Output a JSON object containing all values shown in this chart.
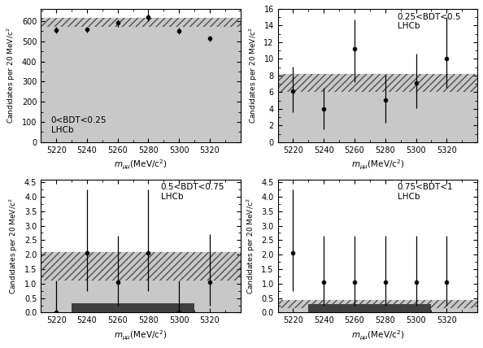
{
  "panels": [
    {
      "label": "0<BDT<0.25\nLHCb",
      "label_pos": "lower left",
      "ylim": [
        0,
        660
      ],
      "yticks": [
        0,
        100,
        200,
        300,
        400,
        500,
        600
      ],
      "data_x": [
        5220,
        5240,
        5260,
        5280,
        5300,
        5320
      ],
      "data_y": [
        555,
        558,
        590,
        618,
        552,
        513
      ],
      "data_yerr_lo": [
        15,
        15,
        18,
        20,
        16,
        14
      ],
      "data_yerr_hi": [
        15,
        15,
        18,
        20,
        16,
        14
      ],
      "band_low": 570,
      "band_high": 615,
      "has_signal_bar": false
    },
    {
      "label": "0.25<BDT<0.5\nLHCb",
      "label_pos": "upper right",
      "ylim": [
        0,
        16
      ],
      "yticks": [
        0,
        2,
        4,
        6,
        8,
        10,
        12,
        14,
        16
      ],
      "data_x": [
        5220,
        5240,
        5260,
        5280,
        5300,
        5320
      ],
      "data_y": [
        6.1,
        4.0,
        11.2,
        5.1,
        7.1,
        10.0
      ],
      "data_yerr_lo": [
        2.5,
        2.5,
        4.0,
        2.8,
        3.0,
        3.5
      ],
      "data_yerr_hi": [
        3.0,
        2.5,
        3.5,
        3.0,
        3.5,
        5.0
      ],
      "band_low": 6.0,
      "band_high": 8.2,
      "has_signal_bar": false
    },
    {
      "label": "0.5<BDT<0.75\nLHCb",
      "label_pos": "upper right",
      "ylim": [
        0,
        4.6
      ],
      "yticks": [
        0,
        0.5,
        1.0,
        1.5,
        2.0,
        2.5,
        3.0,
        3.5,
        4.0,
        4.5
      ],
      "data_x": [
        5220,
        5240,
        5260,
        5280,
        5300,
        5320
      ],
      "data_y": [
        0.0,
        2.05,
        1.05,
        2.05,
        0.0,
        1.05
      ],
      "data_yerr_lo": [
        0.0,
        1.3,
        0.8,
        1.3,
        0.0,
        0.8
      ],
      "data_yerr_hi": [
        1.1,
        2.2,
        1.6,
        2.2,
        1.1,
        1.65
      ],
      "band_low": 1.1,
      "band_high": 2.1,
      "signal_x_start": 5230,
      "signal_x_end": 5310,
      "signal_height": 0.32,
      "has_signal_bar": true
    },
    {
      "label": "0.75<BDT<1\nLHCb",
      "label_pos": "upper right",
      "ylim": [
        0,
        4.6
      ],
      "yticks": [
        0,
        0.5,
        1.0,
        1.5,
        2.0,
        2.5,
        3.0,
        3.5,
        4.0,
        4.5
      ],
      "data_x": [
        5220,
        5240,
        5260,
        5280,
        5300,
        5320
      ],
      "data_y": [
        2.05,
        1.05,
        1.05,
        1.05,
        1.05,
        1.05
      ],
      "data_yerr_lo": [
        1.3,
        0.8,
        0.8,
        0.8,
        0.8,
        0.8
      ],
      "data_yerr_hi": [
        2.2,
        1.6,
        1.6,
        1.6,
        1.6,
        1.6
      ],
      "band_low": 0.15,
      "band_high": 0.42,
      "signal_x_start": 5230,
      "signal_x_end": 5310,
      "signal_height": 0.28,
      "has_signal_bar": true
    }
  ],
  "xlim": [
    5210,
    5340
  ],
  "xticks": [
    5220,
    5240,
    5260,
    5280,
    5300,
    5320
  ],
  "band_color": "#c8c8c8",
  "hatch_color": "#505050",
  "signal_color": "#404040"
}
